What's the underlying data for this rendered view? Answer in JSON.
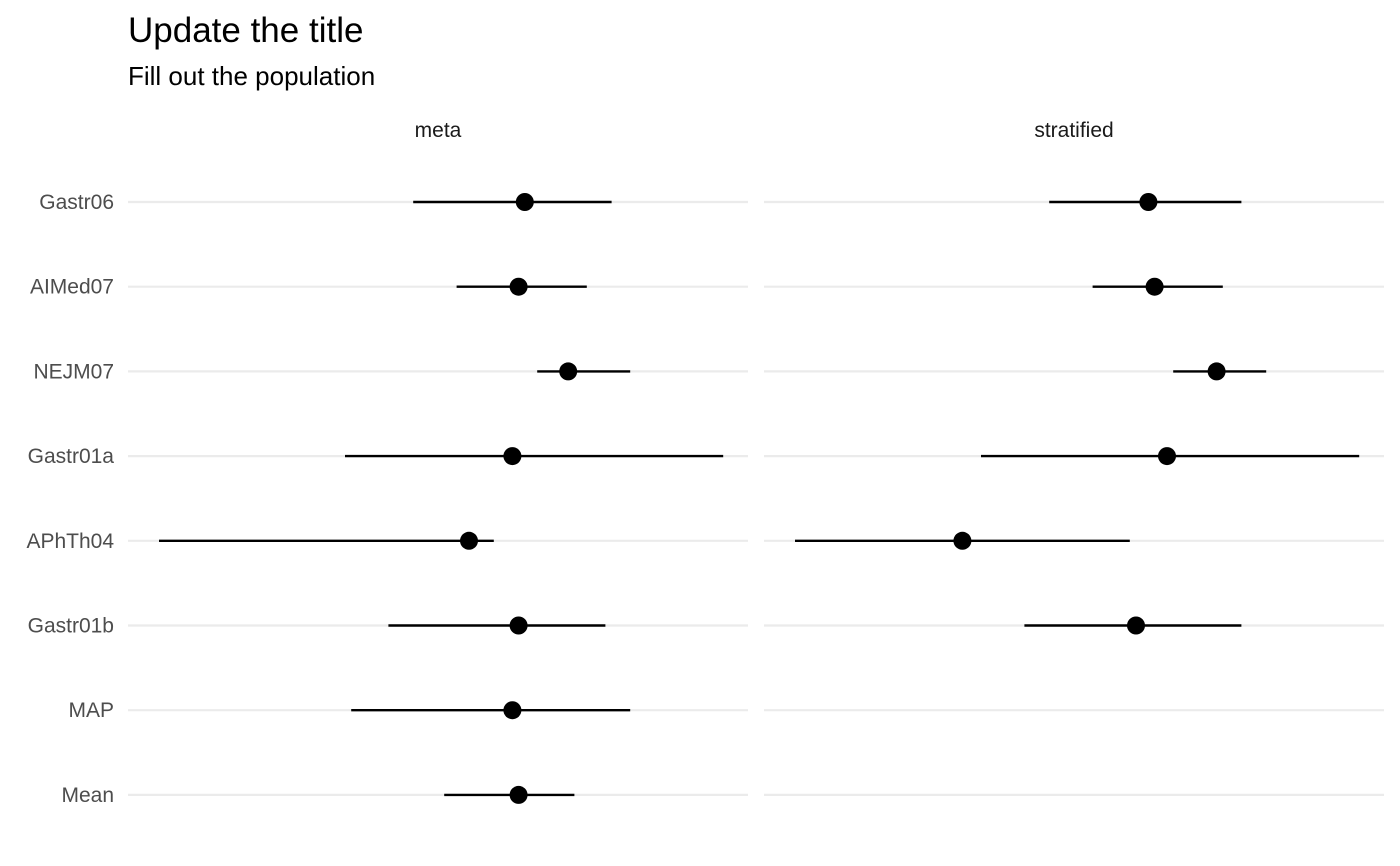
{
  "title": "Update the title",
  "subtitle": "Fill out the population",
  "chart_data": {
    "type": "forest",
    "title": "Update the title",
    "subtitle": "Fill out the population",
    "xlabel": "",
    "ylabel": "",
    "grid": "horizontal",
    "legend": "none",
    "x_axis_labels_shown": false,
    "xlim": [
      0,
      1
    ],
    "categories": [
      "Gastr06",
      "AIMed07",
      "NEJM07",
      "Gastr01a",
      "APhTh04",
      "Gastr01b",
      "MAP",
      "Mean"
    ],
    "panels": [
      {
        "name": "meta",
        "points": [
          {
            "category": "Gastr06",
            "estimate": 0.64,
            "lower": 0.46,
            "upper": 0.78
          },
          {
            "category": "AIMed07",
            "estimate": 0.63,
            "lower": 0.53,
            "upper": 0.74
          },
          {
            "category": "NEJM07",
            "estimate": 0.71,
            "lower": 0.66,
            "upper": 0.81
          },
          {
            "category": "Gastr01a",
            "estimate": 0.62,
            "lower": 0.35,
            "upper": 0.96
          },
          {
            "category": "APhTh04",
            "estimate": 0.55,
            "lower": 0.05,
            "upper": 0.59
          },
          {
            "category": "Gastr01b",
            "estimate": 0.63,
            "lower": 0.42,
            "upper": 0.77
          },
          {
            "category": "MAP",
            "estimate": 0.62,
            "lower": 0.36,
            "upper": 0.81
          },
          {
            "category": "Mean",
            "estimate": 0.63,
            "lower": 0.51,
            "upper": 0.72
          }
        ]
      },
      {
        "name": "stratified",
        "points": [
          {
            "category": "Gastr06",
            "estimate": 0.62,
            "lower": 0.46,
            "upper": 0.77
          },
          {
            "category": "AIMed07",
            "estimate": 0.63,
            "lower": 0.53,
            "upper": 0.74
          },
          {
            "category": "NEJM07",
            "estimate": 0.73,
            "lower": 0.66,
            "upper": 0.81
          },
          {
            "category": "Gastr01a",
            "estimate": 0.65,
            "lower": 0.35,
            "upper": 0.96
          },
          {
            "category": "APhTh04",
            "estimate": 0.32,
            "lower": 0.05,
            "upper": 0.59
          },
          {
            "category": "Gastr01b",
            "estimate": 0.6,
            "lower": 0.42,
            "upper": 0.77
          }
        ]
      }
    ]
  }
}
